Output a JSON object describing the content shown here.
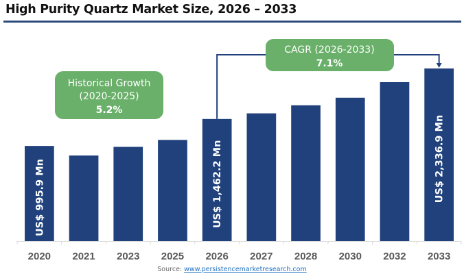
{
  "title": "High Purity Quartz Market Size, 2026 – 2033",
  "source": {
    "label": "Source:",
    "link_text": "www.persistencemarketresearch.com"
  },
  "colors": {
    "bar": "#20417c",
    "callout": "#6ab06a",
    "connector": "#20417c",
    "axis": "#d9d9d9",
    "tick_label": "#595959"
  },
  "callouts": {
    "historical": {
      "line1": "Historical Growth",
      "line2": "(2020-2025)",
      "value": "5.2%"
    },
    "cagr": {
      "line1": "CAGR (2026-2033)",
      "value": "7.1%"
    }
  },
  "chart_data": {
    "type": "bar",
    "title": "High Purity Quartz Market Size, 2026 – 2033",
    "xlabel": "",
    "ylabel": "",
    "unit": "US$ Mn",
    "grid": false,
    "legend": "none",
    "ylim": [
      -650,
      2400
    ],
    "categories": [
      "2020",
      "2021",
      "2023",
      "2025",
      "2026",
      "2027",
      "2028",
      "2030",
      "2032",
      "2033"
    ],
    "values": [
      995.9,
      830,
      980,
      1100,
      1462.2,
      1560,
      1700,
      1830,
      2100,
      2336.9
    ],
    "data_labels": [
      {
        "category": "2020",
        "text": "US$  995.9  Mn"
      },
      {
        "category": "2026",
        "text": "US$  1,462.2  Mn"
      },
      {
        "category": "2033",
        "text": "US$  2,336.9 Mn"
      }
    ]
  }
}
